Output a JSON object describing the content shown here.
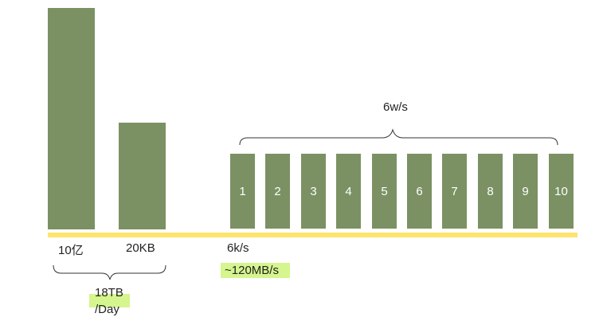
{
  "colors": {
    "bar": "#7b9163",
    "baseline": "#fde46a",
    "highlight": "#d5f58e",
    "bracket": "#333333",
    "node_text": "#ffffff"
  },
  "left": {
    "count_label": "10亿",
    "size_label": "20KB",
    "total_label_line1": "18TB",
    "total_label_line2": "/Day",
    "relative_heights": [
      1.0,
      0.48
    ]
  },
  "middle": {
    "rate_label": "6k/s",
    "throughput_label": "~120MB/s"
  },
  "right": {
    "total_rate_label": "6w/s",
    "nodes": [
      "1",
      "2",
      "3",
      "4",
      "5",
      "6",
      "7",
      "8",
      "9",
      "10"
    ]
  }
}
